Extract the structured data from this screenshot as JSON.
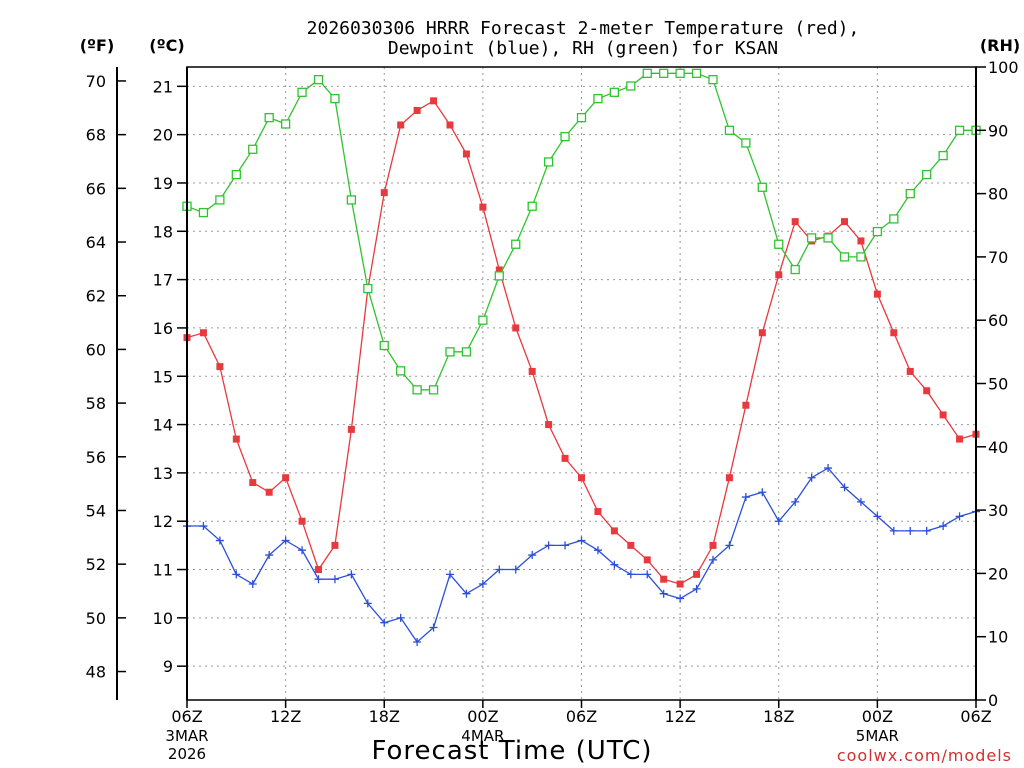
{
  "chart_data": {
    "type": "line",
    "title_lines": [
      "2026030306 HRRR Forecast 2-meter Temperature (red),",
      "Dewpoint (blue), RH (green) for KSAN"
    ],
    "units": {
      "fahrenheit": "(ºF)",
      "celsius": "(ºC)",
      "rh": "(RH)"
    },
    "xlabel": "Forecast Time (UTC)",
    "credit": "coolwx.com/models",
    "x_hours_range": [
      0,
      48
    ],
    "xticks": [
      {
        "hour": 0,
        "label": "06Z"
      },
      {
        "hour": 6,
        "label": "12Z"
      },
      {
        "hour": 12,
        "label": "18Z"
      },
      {
        "hour": 18,
        "label": "00Z"
      },
      {
        "hour": 24,
        "label": "06Z"
      },
      {
        "hour": 30,
        "label": "12Z"
      },
      {
        "hour": 36,
        "label": "18Z"
      },
      {
        "hour": 42,
        "label": "00Z"
      },
      {
        "hour": 48,
        "label": "06Z"
      }
    ],
    "date_labels": [
      {
        "hour": 0,
        "lines": [
          "3MAR",
          "2026"
        ]
      },
      {
        "hour": 18,
        "lines": [
          "4MAR"
        ]
      },
      {
        "hour": 42,
        "lines": [
          "5MAR"
        ]
      }
    ],
    "celsius_axis": {
      "range": [
        8.3,
        21.4
      ],
      "ticks": [
        9,
        10,
        11,
        12,
        13,
        14,
        15,
        16,
        17,
        18,
        19,
        20,
        21
      ]
    },
    "fahrenheit_axis": {
      "ticks": [
        48,
        50,
        52,
        54,
        56,
        58,
        60,
        62,
        64,
        66,
        68,
        70
      ]
    },
    "rh_axis": {
      "range": [
        0,
        100
      ],
      "ticks": [
        0,
        10,
        20,
        30,
        40,
        50,
        60,
        70,
        80,
        90,
        100
      ]
    },
    "x_hours": [
      0,
      1,
      2,
      3,
      4,
      5,
      6,
      7,
      8,
      9,
      10,
      11,
      12,
      13,
      14,
      15,
      16,
      17,
      18,
      19,
      20,
      21,
      22,
      23,
      24,
      25,
      26,
      27,
      28,
      29,
      30,
      31,
      32,
      33,
      34,
      35,
      36,
      37,
      38,
      39,
      40,
      41,
      42,
      43,
      44,
      45,
      46,
      47,
      48
    ],
    "series": [
      {
        "name": "Temperature (°C)",
        "color": "#e8393f",
        "marker": "filled-square",
        "axis": "celsius",
        "values": [
          15.8,
          15.9,
          15.2,
          13.7,
          12.8,
          12.6,
          12.9,
          12.0,
          11.0,
          11.5,
          13.9,
          16.8,
          18.8,
          20.2,
          20.5,
          20.7,
          20.2,
          19.6,
          18.5,
          17.2,
          16.0,
          15.1,
          14.0,
          13.3,
          12.9,
          12.2,
          11.8,
          11.5,
          11.2,
          10.8,
          10.7,
          10.9,
          11.5,
          12.9,
          14.4,
          15.9,
          17.1,
          18.2,
          17.8,
          17.9,
          18.2,
          17.8,
          16.7,
          15.9,
          15.1,
          14.7,
          14.2,
          13.7,
          13.8
        ]
      },
      {
        "name": "Dewpoint (°C)",
        "color": "#2b4fd8",
        "marker": "plus",
        "axis": "celsius",
        "values": [
          11.9,
          11.9,
          11.6,
          10.9,
          10.7,
          11.3,
          11.6,
          11.4,
          10.8,
          10.8,
          10.9,
          10.3,
          9.9,
          10.0,
          9.5,
          9.8,
          10.9,
          10.5,
          10.7,
          11.0,
          11.0,
          11.3,
          11.5,
          11.5,
          11.6,
          11.4,
          11.1,
          10.9,
          10.9,
          10.5,
          10.4,
          10.6,
          11.2,
          11.5,
          12.5,
          12.6,
          12.0,
          12.4,
          12.9,
          13.1,
          12.7,
          12.4,
          12.1,
          11.8,
          11.8,
          11.8,
          11.9,
          12.1,
          12.2
        ]
      },
      {
        "name": "RH (%)",
        "color": "#2fc42f",
        "marker": "open-square",
        "axis": "rh",
        "values": [
          78,
          77,
          79,
          83,
          87,
          92,
          91,
          96,
          98,
          95,
          79,
          65,
          56,
          52,
          49,
          49,
          55,
          55,
          60,
          67,
          72,
          78,
          85,
          89,
          92,
          95,
          96,
          97,
          99,
          99,
          99,
          99,
          98,
          90,
          88,
          81,
          72,
          68,
          73,
          73,
          70,
          70,
          74,
          76,
          80,
          83,
          86,
          90,
          90
        ]
      }
    ]
  }
}
